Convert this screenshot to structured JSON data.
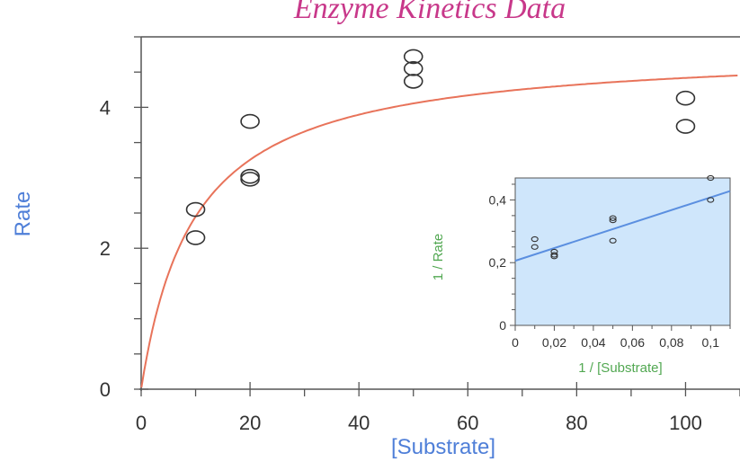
{
  "colors": {
    "title": "#c8388a",
    "main_axis_label": "#4f7fd8",
    "fit_curve": "#e8735a",
    "inset_background": "#cfe6fb",
    "inset_fit_line": "#5b8fe0",
    "inset_axis_label": "#52a852"
  },
  "chart_data": [
    {
      "type": "scatter",
      "title": "Enzyme Kinetics Data",
      "xlabel": "[Substrate]",
      "ylabel": "Rate",
      "xlim": [
        0,
        110
      ],
      "ylim": [
        0,
        5
      ],
      "x_ticks": [
        0,
        20,
        40,
        60,
        80,
        100
      ],
      "y_ticks": [
        0,
        2,
        4
      ],
      "x_tick_labels": [
        "0",
        "20",
        "40",
        "60",
        "80",
        "100"
      ],
      "y_tick_labels": [
        "0",
        "2",
        "4"
      ],
      "grid": false,
      "series": [
        {
          "marker": "open-circle",
          "x": [
            10,
            10,
            20,
            20,
            20,
            50,
            50,
            50,
            100,
            100
          ],
          "y": [
            2.55,
            2.15,
            3.8,
            2.98,
            3.02,
            4.72,
            4.55,
            4.37,
            4.13,
            3.73
          ]
        }
      ],
      "fit": {
        "type": "michaelis-menten",
        "vmax": 4.85,
        "km": 9.8
      }
    },
    {
      "type": "scatter",
      "inset": true,
      "xlabel": "1 / [Substrate]",
      "ylabel": "1 / Rate",
      "xlim": [
        0,
        0.11
      ],
      "ylim": [
        0,
        0.47
      ],
      "x_ticks": [
        0,
        0.02,
        0.04,
        0.06,
        0.08,
        0.1
      ],
      "y_ticks": [
        0,
        0.2,
        0.4
      ],
      "x_tick_labels": [
        "0",
        "0,02",
        "0,04",
        "0,06",
        "0,08",
        "0,1"
      ],
      "y_tick_labels": [
        "0",
        "0,2",
        "0,4"
      ],
      "background": "#cfe6fb",
      "series": [
        {
          "marker": "open-circle",
          "x": [
            0.01,
            0.01,
            0.02,
            0.02,
            0.02,
            0.05,
            0.05,
            0.05,
            0.1,
            0.1
          ],
          "y": [
            0.275,
            0.25,
            0.235,
            0.225,
            0.22,
            0.342,
            0.335,
            0.27,
            0.47,
            0.4
          ]
        }
      ],
      "fit": {
        "type": "linear",
        "intercept": 0.206,
        "slope": 2.02
      }
    }
  ]
}
